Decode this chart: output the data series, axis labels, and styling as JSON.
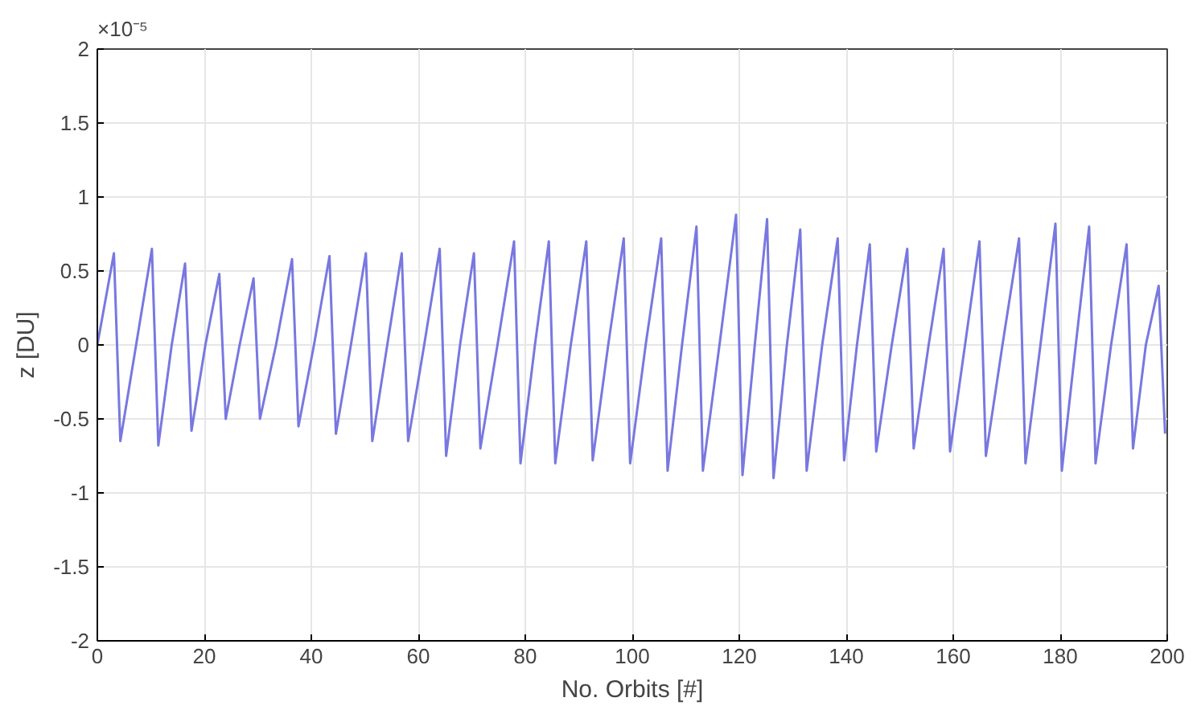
{
  "chart_data": {
    "type": "line",
    "xlabel": "No. Orbits [#]",
    "ylabel": "z [DU]",
    "annotations": [
      "×10⁻⁵"
    ],
    "xlim": [
      0,
      200
    ],
    "ylim": [
      -2,
      2
    ],
    "xticks": [
      0,
      20,
      40,
      60,
      80,
      100,
      120,
      140,
      160,
      180,
      200
    ],
    "yticks": [
      -2,
      -1.5,
      -1,
      -0.5,
      0,
      0.5,
      1,
      1.5,
      2
    ],
    "grid": true,
    "series": [
      {
        "color": "#7878e0",
        "x": [
          0,
          3.1,
          4.3,
          7.25,
          10.2,
          11.4,
          13.9,
          16.4,
          17.6,
          20.2,
          22.8,
          24.0,
          26.6,
          29.2,
          30.4,
          33.4,
          36.4,
          37.6,
          40.5,
          43.4,
          44.6,
          47.4,
          50.2,
          51.4,
          54.2,
          56.9,
          58.1,
          61.1,
          64.0,
          65.2,
          67.8,
          70.4,
          71.6,
          74.8,
          77.9,
          79.1,
          81.8,
          84.4,
          85.6,
          88.5,
          91.4,
          92.6,
          95.5,
          98.4,
          99.6,
          102.5,
          105.4,
          106.6,
          109.3,
          112.0,
          113.2,
          116.3,
          119.4,
          120.6,
          122.9,
          125.2,
          126.4,
          128.9,
          131.4,
          132.6,
          135.5,
          138.4,
          139.6,
          142,
          144.4,
          145.6,
          148.5,
          151.4,
          152.6,
          155.4,
          158.2,
          159.4,
          162.2,
          164.9,
          166.1,
          169.2,
          172.3,
          173.5,
          176.3,
          179.1,
          180.3,
          182.9,
          185.4,
          186.6,
          189.5,
          192.4,
          193.6,
          196,
          198.4,
          199.6
        ],
        "values": [
          0,
          0.62,
          -0.65,
          0,
          0.65,
          -0.68,
          0,
          0.55,
          -0.58,
          0,
          0.48,
          -0.5,
          0,
          0.45,
          -0.5,
          0,
          0.58,
          -0.55,
          0,
          0.6,
          -0.6,
          0,
          0.62,
          -0.65,
          0,
          0.62,
          -0.65,
          0,
          0.65,
          -0.75,
          0,
          0.62,
          -0.7,
          0,
          0.7,
          -0.8,
          0,
          0.7,
          -0.8,
          0,
          0.7,
          -0.78,
          0,
          0.72,
          -0.8,
          0,
          0.72,
          -0.85,
          0,
          0.8,
          -0.85,
          0,
          0.88,
          -0.88,
          0,
          0.85,
          -0.9,
          0,
          0.78,
          -0.85,
          0,
          0.72,
          -0.78,
          0,
          0.68,
          -0.72,
          0,
          0.65,
          -0.7,
          0,
          0.65,
          -0.72,
          0,
          0.7,
          -0.75,
          0,
          0.72,
          -0.8,
          0,
          0.82,
          -0.85,
          0,
          0.8,
          -0.8,
          0,
          0.68,
          -0.7,
          0,
          0.4,
          -0.6
        ]
      }
    ]
  }
}
